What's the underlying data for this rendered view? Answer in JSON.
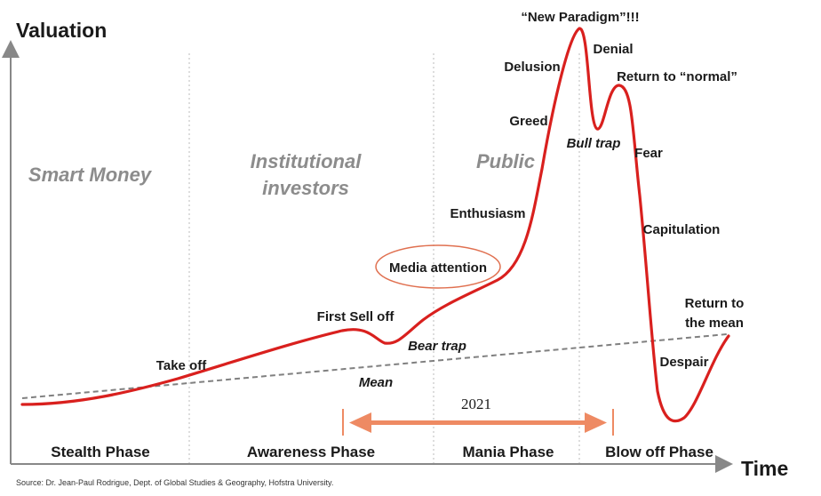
{
  "axes": {
    "y_label": "Valuation",
    "x_label": "Time"
  },
  "investor_groups": [
    "Smart Money",
    "Institutional",
    "investors",
    "Public"
  ],
  "phases": [
    "Stealth Phase",
    "Awareness Phase",
    "Mania Phase",
    "Blow off Phase"
  ],
  "curve_labels": {
    "take_off": "Take off",
    "first_sell_off": "First Sell off",
    "bear_trap": "Bear trap",
    "mean": "Mean",
    "media_attention": "Media attention",
    "enthusiasm": "Enthusiasm",
    "greed": "Greed",
    "delusion": "Delusion",
    "new_paradigm": "“New Paradigm”!!!",
    "denial": "Denial",
    "return_normal": "Return to “normal”",
    "bull_trap": "Bull trap",
    "fear": "Fear",
    "capitulation": "Capitulation",
    "despair": "Despair",
    "return_mean_line1": "Return to",
    "return_mean_line2": "the mean"
  },
  "year_marker": "2021",
  "source": "Source: Dr. Jean-Paul Rodrigue, Dept. of Global Studies & Geography, Hofstra University.",
  "colors": {
    "curve": "#d9201e",
    "mean_line": "#808080",
    "arrow": "#ee8a63",
    "ellipse": "#e07050",
    "axis": "#888888"
  }
}
